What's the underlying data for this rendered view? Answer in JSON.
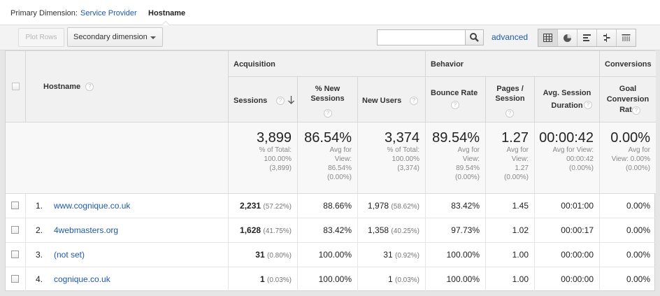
{
  "primary_dimension": {
    "label": "Primary Dimension:",
    "options": [
      "Service Provider",
      "Hostname"
    ],
    "selected": "Hostname"
  },
  "toolbar": {
    "plot_rows": "Plot Rows",
    "secondary_dimension": "Secondary dimension",
    "search_value": "",
    "advanced": "advanced",
    "view_icons": [
      "table-view-icon",
      "pie-view-icon",
      "bar-view-icon",
      "comparison-view-icon",
      "pivot-view-icon"
    ]
  },
  "table": {
    "dimension_header": "Hostname",
    "groups": {
      "acquisition": "Acquisition",
      "behavior": "Behavior",
      "conversions": "Conversions"
    },
    "columns": {
      "sessions": "Sessions",
      "new_sessions": "% New Sessions",
      "new_users": "New Users",
      "bounce_rate": "Bounce Rate",
      "pages_session": "Pages / Session",
      "avg_duration": "Avg. Session Duration",
      "goal_rate": "Goal Conversion Rate"
    },
    "totals": {
      "sessions": {
        "value": "3,899",
        "l1": "% of Total:",
        "l2": "100.00%",
        "l3": "(3,899)"
      },
      "new_sessions": {
        "value": "86.54%",
        "l1": "Avg for",
        "l2": "View:",
        "l3": "86.54%",
        "l4": "(0.00%)"
      },
      "new_users": {
        "value": "3,374",
        "l1": "% of Total:",
        "l2": "100.00%",
        "l3": "(3,374)"
      },
      "bounce_rate": {
        "value": "89.54%",
        "l1": "Avg for",
        "l2": "View:",
        "l3": "89.54%",
        "l4": "(0.00%)"
      },
      "pages_session": {
        "value": "1.27",
        "l1": "Avg for",
        "l2": "View:",
        "l3": "1.27",
        "l4": "(0.00%)"
      },
      "avg_duration": {
        "value": "00:00:42",
        "l1": "Avg for View:",
        "l2": "00:00:42",
        "l3": "(0.00%)"
      },
      "goal_rate": {
        "value": "0.00%",
        "l1": "Avg for",
        "l2": "View: 0.00%",
        "l3": "(0.00%)"
      }
    },
    "rows": [
      {
        "index": "1.",
        "hostname": "www.cognique.co.uk",
        "sessions": "2,231",
        "sessions_pct": "(57.22%)",
        "new_sessions": "88.66%",
        "new_users": "1,978",
        "new_users_pct": "(58.62%)",
        "bounce_rate": "83.42%",
        "pages_session": "1.45",
        "avg_duration": "00:01:00",
        "goal_rate": "0.00%"
      },
      {
        "index": "2.",
        "hostname": "4webmasters.org",
        "sessions": "1,628",
        "sessions_pct": "(41.75%)",
        "new_sessions": "83.42%",
        "new_users": "1,358",
        "new_users_pct": "(40.25%)",
        "bounce_rate": "97.73%",
        "pages_session": "1.02",
        "avg_duration": "00:00:17",
        "goal_rate": "0.00%"
      },
      {
        "index": "3.",
        "hostname": "(not set)",
        "sessions": "31",
        "sessions_pct": "(0.80%)",
        "new_sessions": "100.00%",
        "new_users": "31",
        "new_users_pct": "(0.92%)",
        "bounce_rate": "100.00%",
        "pages_session": "1.00",
        "avg_duration": "00:00:00",
        "goal_rate": "0.00%"
      },
      {
        "index": "4.",
        "hostname": "cognique.co.uk",
        "sessions": "1",
        "sessions_pct": "(0.03%)",
        "new_sessions": "100.00%",
        "new_users": "1",
        "new_users_pct": "(0.03%)",
        "bounce_rate": "100.00%",
        "pages_session": "1.00",
        "avg_duration": "00:00:00",
        "goal_rate": "0.00%"
      }
    ]
  }
}
